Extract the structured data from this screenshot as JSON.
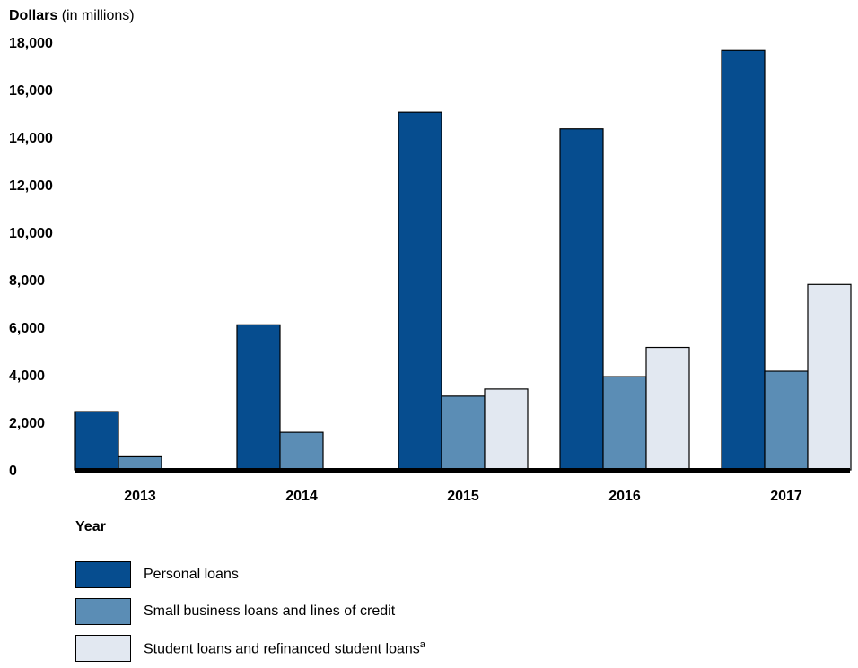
{
  "chart_data": {
    "type": "bar",
    "title": "",
    "ylabel_bold": "Dollars",
    "ylabel_suffix": " (in millions)",
    "xlabel": "Year",
    "categories": [
      "2013",
      "2014",
      "2015",
      "2016",
      "2017"
    ],
    "ylim": [
      0,
      18000
    ],
    "yticks": [
      0,
      2000,
      4000,
      6000,
      8000,
      10000,
      12000,
      14000,
      16000,
      18000
    ],
    "ytick_labels": [
      "0",
      "2,000",
      "4,000",
      "6,000",
      "8,000",
      "10,000",
      "12,000",
      "14,000",
      "16,000",
      "18,000"
    ],
    "grid": false,
    "legend_position": "bottom-left",
    "series": [
      {
        "name": "Personal loans",
        "color": "#064d8f",
        "values": [
          2450,
          6100,
          15050,
          14350,
          17650
        ]
      },
      {
        "name": "Small business loans and lines of credit",
        "color": "#5b8db5",
        "values": [
          550,
          1580,
          3100,
          3920,
          4150
        ]
      },
      {
        "name": "Student loans and refinanced student loans",
        "name_superscript": "a",
        "color": "#e2e8f1",
        "values": [
          0,
          0,
          3400,
          5150,
          7800
        ]
      }
    ]
  }
}
